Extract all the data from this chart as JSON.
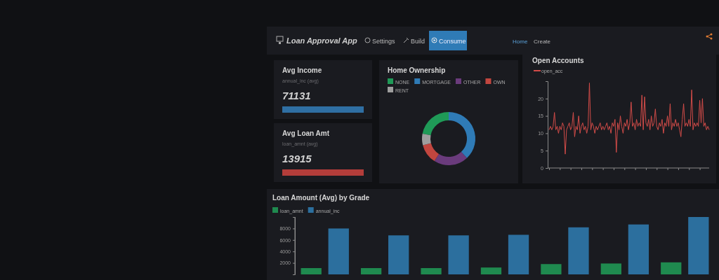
{
  "chart_data": [
    {
      "type": "other",
      "title": "Loan Approval App",
      "annotations": [
        "Settings",
        "Build",
        "Consume",
        "Home",
        "Create"
      ]
    },
    {
      "type": "other",
      "title": "Avg Income",
      "subtitle": "annual_inc (avg)",
      "annotations": [
        "71131"
      ]
    },
    {
      "type": "other",
      "title": "Avg Loan Amt",
      "subtitle": "loan_amnt (avg)",
      "annotations": [
        "13915"
      ]
    },
    {
      "type": "donut",
      "title": "Home Ownership",
      "categories": [
        "NONE",
        "MORTGAGE",
        "OTHER",
        "OWN",
        "RENT"
      ],
      "values": [
        22,
        38,
        21,
        12,
        7
      ],
      "colors": [
        "#1f9a57",
        "#2f7bb6",
        "#6a3b7c",
        "#c2463f",
        "#9e9e9e"
      ],
      "legend": "top left"
    },
    {
      "type": "line",
      "title": "Open Accounts",
      "legend": "top left",
      "ylim": [
        0,
        25
      ],
      "yticks": [
        0,
        5,
        10,
        15,
        20
      ],
      "categories": [
        null,
        null,
        null,
        null,
        null,
        null,
        null,
        null,
        null,
        null,
        null,
        null,
        null,
        null,
        null,
        null,
        null,
        null,
        null,
        null,
        null,
        null,
        null,
        null,
        null,
        null,
        null,
        null,
        null,
        null,
        null,
        null,
        null,
        null,
        null,
        null,
        null,
        null,
        null,
        null,
        null,
        null,
        null,
        null,
        null,
        null,
        null,
        null,
        null,
        null,
        null,
        null,
        null,
        null,
        null,
        null,
        null,
        null,
        null,
        null,
        null,
        null,
        null,
        null,
        null,
        null,
        null,
        null,
        null,
        null,
        null,
        null,
        null,
        null,
        null,
        null,
        null,
        null,
        null,
        null,
        null,
        null,
        null,
        null,
        null,
        null,
        null,
        null,
        null,
        null,
        null,
        null,
        null,
        null,
        null,
        null,
        null,
        null,
        null,
        null,
        null,
        null,
        null,
        null,
        null,
        null,
        null,
        null,
        null,
        null,
        null,
        null,
        null,
        null,
        null,
        null,
        null,
        null,
        null,
        null
      ],
      "series": [
        {
          "name": "open_acc",
          "color": "#d24b48",
          "values": [
            11,
            12,
            11,
            12,
            16,
            11,
            12,
            10,
            12,
            11,
            13,
            12,
            4,
            11,
            12,
            13,
            11,
            12,
            16,
            9,
            12,
            11,
            15,
            10,
            12,
            13,
            11,
            12,
            10,
            12,
            24.5,
            11,
            13,
            12,
            10,
            12,
            11,
            12,
            13,
            11,
            12,
            11,
            12,
            13,
            11,
            12,
            10,
            13,
            12,
            14,
            4.5,
            13,
            11,
            15,
            12,
            10,
            13,
            12,
            14,
            11,
            13,
            19,
            12,
            13,
            11,
            14,
            12,
            13,
            12,
            21,
            11,
            20.5,
            13,
            12,
            14,
            11,
            15,
            12,
            13,
            17,
            12,
            11,
            13,
            12,
            14,
            10,
            13,
            12,
            15,
            12,
            18.5,
            11,
            13,
            12,
            14,
            12,
            13,
            11,
            9,
            14,
            18.5,
            12,
            13,
            12,
            14,
            12,
            22.5,
            11,
            13,
            12,
            13,
            12,
            19.5,
            13,
            20,
            12,
            13,
            11,
            12,
            11
          ]
        }
      ]
    },
    {
      "type": "bar",
      "title": "Loan Amount (Avg) by Grade",
      "legend": "top left",
      "ylim": [
        0,
        10000
      ],
      "yticks": [
        2000,
        4000,
        6000,
        8000
      ],
      "categories": [
        null,
        null,
        null,
        null,
        null,
        null,
        null
      ],
      "series": [
        {
          "name": "loan_amnt",
          "color": "#1f8a4f",
          "values": [
            1100,
            1100,
            1100,
            1200,
            1800,
            1900,
            2100
          ]
        },
        {
          "name": "annual_inc",
          "color": "#2c6f9e",
          "values": [
            8000,
            6800,
            6800,
            6900,
            8200,
            8700,
            10000
          ]
        }
      ]
    }
  ]
}
